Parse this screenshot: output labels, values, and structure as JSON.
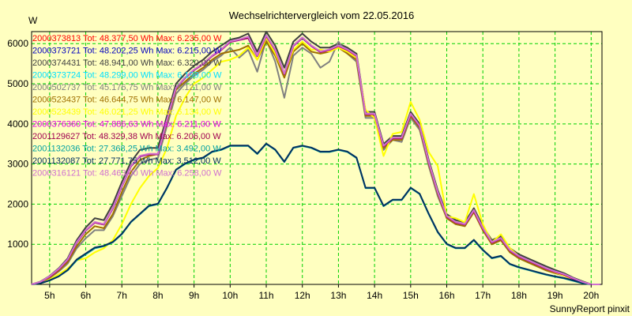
{
  "chart_data": {
    "type": "line",
    "title": "Wechselrichtervergleich vom 22.05.2016",
    "ylabel": "W",
    "credit": "SunnyReport pinxit",
    "xlim": [
      4.5,
      20.3
    ],
    "ylim": [
      0,
      6300
    ],
    "grid": true,
    "legend_position": "top-left",
    "x_ticks": [
      5,
      6,
      7,
      8,
      9,
      10,
      11,
      12,
      13,
      14,
      15,
      16,
      17,
      18,
      19,
      20
    ],
    "x_tick_labels": [
      "5h",
      "6h",
      "7h",
      "8h",
      "9h",
      "10h",
      "11h",
      "12h",
      "13h",
      "14h",
      "15h",
      "16h",
      "17h",
      "18h",
      "19h",
      "20h"
    ],
    "y_ticks": [
      0,
      1000,
      2000,
      3000,
      4000,
      5000,
      6000
    ],
    "y_tick_labels": [
      "",
      "1000",
      "2000",
      "3000",
      "4000",
      "5000",
      "6000"
    ],
    "x": [
      4.5,
      4.75,
      5.0,
      5.25,
      5.5,
      5.75,
      6.0,
      6.25,
      6.5,
      6.75,
      7.0,
      7.25,
      7.5,
      7.75,
      8.0,
      8.25,
      8.5,
      8.75,
      9.0,
      9.25,
      9.5,
      9.75,
      10.0,
      10.25,
      10.5,
      10.75,
      11.0,
      11.25,
      11.5,
      11.75,
      12.0,
      12.25,
      12.5,
      12.75,
      13.0,
      13.25,
      13.5,
      13.75,
      14.0,
      14.25,
      14.5,
      14.75,
      15.0,
      15.25,
      15.5,
      15.75,
      16.0,
      16.25,
      16.5,
      16.75,
      17.0,
      17.25,
      17.5,
      17.75,
      18.0,
      18.25,
      18.5,
      18.75,
      19.0,
      19.25,
      19.5,
      19.75,
      20.0,
      20.25
    ],
    "series": [
      {
        "name": "2000373813 Tot: 48.377,50 Wh Max: 6.235,00 W",
        "color": "#ff0000",
        "values": [
          0,
          60,
          200,
          380,
          620,
          1050,
          1350,
          1550,
          1500,
          1900,
          2450,
          2950,
          3200,
          3250,
          3250,
          4100,
          4900,
          5150,
          5350,
          5500,
          5700,
          5850,
          6050,
          6100,
          6150,
          5700,
          6200,
          5850,
          5250,
          5950,
          6150,
          5950,
          5800,
          5850,
          5950,
          5850,
          5700,
          4250,
          4250,
          3450,
          3650,
          3650,
          4250,
          3950,
          3050,
          2300,
          1700,
          1550,
          1500,
          1850,
          1400,
          1050,
          1150,
          850,
          700,
          600,
          500,
          400,
          320,
          250,
          150,
          60,
          0,
          0
        ]
      },
      {
        "name": "2000373721 Tot: 48.202,25 Wh Max: 6.215,00 W",
        "color": "#0000c0",
        "values": [
          0,
          60,
          190,
          370,
          610,
          1040,
          1340,
          1540,
          1490,
          1890,
          2440,
          2940,
          3190,
          3240,
          3240,
          4090,
          4890,
          5140,
          5340,
          5490,
          5690,
          5840,
          6040,
          6090,
          6140,
          5690,
          6190,
          5840,
          5240,
          5940,
          6140,
          5940,
          5790,
          5840,
          5940,
          5840,
          5690,
          4240,
          4240,
          3440,
          3640,
          3640,
          4240,
          3940,
          3040,
          2290,
          1690,
          1540,
          1490,
          1840,
          1390,
          1040,
          1140,
          840,
          690,
          590,
          490,
          390,
          310,
          240,
          140,
          50,
          0,
          0
        ]
      },
      {
        "name": "2000374431 Tot: 48.941,00 Wh Max: 6.320,00 W",
        "color": "#404040",
        "values": [
          0,
          70,
          210,
          400,
          650,
          1100,
          1420,
          1650,
          1600,
          2000,
          2550,
          3050,
          3350,
          3400,
          3400,
          4200,
          5000,
          5250,
          5450,
          5600,
          5800,
          5950,
          6100,
          6150,
          6250,
          5800,
          6300,
          5950,
          5400,
          6050,
          6250,
          6050,
          5900,
          5900,
          6000,
          5900,
          5750,
          4300,
          4300,
          3500,
          3700,
          3700,
          4300,
          4000,
          3100,
          2350,
          1750,
          1600,
          1550,
          1900,
          1450,
          1100,
          1200,
          900,
          750,
          650,
          550,
          450,
          360,
          280,
          170,
          80,
          0,
          0
        ]
      },
      {
        "name": "2000373724 Tot: 48.299,00 Wh Max: 6.199,00 W",
        "color": "#00e0ff",
        "values": [
          0,
          60,
          195,
          375,
          615,
          1045,
          1345,
          1545,
          1495,
          1895,
          2445,
          2945,
          3195,
          3245,
          3245,
          4095,
          4895,
          5145,
          5345,
          5495,
          5695,
          5845,
          6045,
          6095,
          6145,
          5695,
          6195,
          5845,
          5245,
          5945,
          6145,
          5945,
          5795,
          5845,
          5945,
          5845,
          5695,
          4245,
          4245,
          3445,
          3645,
          3645,
          4245,
          3945,
          3045,
          2295,
          1695,
          1545,
          1495,
          1845,
          1395,
          1045,
          1145,
          845,
          695,
          595,
          495,
          395,
          315,
          245,
          145,
          55,
          0,
          0
        ]
      },
      {
        "name": "2000502737 Tot: 45.176,75 Wh Max: 6.121,00 W",
        "color": "#808080",
        "values": [
          0,
          50,
          160,
          320,
          520,
          900,
          1150,
          1350,
          1350,
          1700,
          2200,
          2700,
          3000,
          3100,
          3150,
          3950,
          4750,
          5000,
          5200,
          5350,
          5550,
          5700,
          5900,
          5650,
          5850,
          5300,
          6100,
          5550,
          4650,
          5700,
          5900,
          5750,
          5400,
          5550,
          6050,
          5750,
          5550,
          4150,
          4150,
          3350,
          3600,
          3550,
          4150,
          3850,
          2950,
          2200,
          1650,
          1500,
          1450,
          1800,
          1350,
          1000,
          1100,
          800,
          650,
          550,
          450,
          350,
          280,
          220,
          130,
          50,
          0,
          0
        ]
      },
      {
        "name": "2000523437 Tot: 46.644,75 Wh Max: 6.147,00 W",
        "color": "#a07000",
        "values": [
          0,
          50,
          170,
          340,
          560,
          950,
          1250,
          1450,
          1400,
          1750,
          2300,
          2800,
          3100,
          3200,
          3250,
          4050,
          4850,
          5050,
          5250,
          5400,
          5600,
          5750,
          5800,
          5850,
          5950,
          5600,
          6050,
          5700,
          5150,
          5800,
          6000,
          5800,
          5750,
          5800,
          5900,
          5750,
          5600,
          4200,
          4200,
          3400,
          3600,
          3600,
          4200,
          3900,
          3000,
          2250,
          1650,
          1500,
          1450,
          1800,
          1350,
          1000,
          1100,
          800,
          650,
          550,
          450,
          350,
          280,
          220,
          130,
          50,
          0,
          0
        ]
      },
      {
        "name": "2000523439 Tot: 46.021,25 Wh Max: 6.134,00 W",
        "color": "#ffff00",
        "values": [
          0,
          40,
          120,
          250,
          400,
          600,
          650,
          800,
          900,
          1100,
          1500,
          2000,
          2400,
          2700,
          2900,
          3400,
          4200,
          4650,
          5000,
          5150,
          5350,
          5550,
          5600,
          5700,
          5900,
          5600,
          6150,
          5750,
          5250,
          5850,
          6050,
          5850,
          5850,
          5800,
          5900,
          5800,
          5650,
          4350,
          4150,
          3200,
          3750,
          3800,
          4550,
          4100,
          3300,
          2950,
          1700,
          1650,
          1550,
          2250,
          1500,
          1050,
          1250,
          900,
          700,
          600,
          500,
          400,
          300,
          220,
          120,
          50,
          0,
          0
        ]
      },
      {
        "name": "2000376360 Tot: 47.886,63 Wh Max: 6.211,00 W",
        "color": "#e000e0",
        "values": [
          0,
          60,
          190,
          370,
          610,
          1040,
          1340,
          1540,
          1490,
          1890,
          2440,
          2940,
          3190,
          3240,
          3240,
          4090,
          4890,
          5140,
          5340,
          5490,
          5690,
          5840,
          6040,
          6090,
          6140,
          5690,
          6190,
          5840,
          5240,
          5940,
          6140,
          5940,
          5790,
          5840,
          5940,
          5840,
          5690,
          4240,
          4240,
          3440,
          3640,
          3640,
          4240,
          3940,
          3040,
          2290,
          1690,
          1540,
          1490,
          1840,
          1390,
          1040,
          1140,
          840,
          690,
          590,
          490,
          390,
          310,
          240,
          140,
          50,
          0,
          0
        ]
      },
      {
        "name": "2001129627 Tot: 48.329,38 Wh Max: 6.206,00 W",
        "color": "#a00050",
        "values": [
          0,
          60,
          195,
          375,
          615,
          1045,
          1345,
          1545,
          1495,
          1895,
          2445,
          2945,
          3195,
          3245,
          3245,
          4095,
          4895,
          5145,
          5345,
          5495,
          5695,
          5845,
          6045,
          6095,
          6145,
          5695,
          6195,
          5845,
          5245,
          5945,
          6145,
          5945,
          5795,
          5845,
          5945,
          5845,
          5695,
          4245,
          4245,
          3445,
          3645,
          3645,
          4245,
          3945,
          3045,
          2295,
          1695,
          1545,
          1495,
          1845,
          1395,
          1045,
          1145,
          845,
          695,
          595,
          495,
          395,
          315,
          245,
          145,
          55,
          0,
          0
        ]
      },
      {
        "name": "2001132036 Tot: 27.368,25 Wh Max: 3.492,00 W",
        "color": "#00a0a0",
        "values": [
          0,
          30,
          100,
          200,
          350,
          600,
          750,
          900,
          950,
          1050,
          1250,
          1550,
          1750,
          1950,
          2000,
          2400,
          2850,
          3000,
          3100,
          3150,
          3300,
          3350,
          3450,
          3450,
          3450,
          3250,
          3500,
          3350,
          3050,
          3400,
          3450,
          3400,
          3300,
          3300,
          3350,
          3300,
          3150,
          2400,
          2400,
          1950,
          2100,
          2100,
          2400,
          2250,
          1750,
          1300,
          1000,
          900,
          900,
          1100,
          850,
          650,
          700,
          500,
          420,
          360,
          300,
          240,
          190,
          150,
          90,
          30,
          0,
          0
        ]
      },
      {
        "name": "2001132087 Tot: 27.771,75 Wh Max: 3.512,00 W",
        "color": "#003060",
        "values": [
          0,
          30,
          100,
          200,
          360,
          620,
          770,
          920,
          960,
          1060,
          1260,
          1560,
          1760,
          1960,
          2010,
          2410,
          2860,
          3010,
          3110,
          3160,
          3310,
          3360,
          3460,
          3460,
          3460,
          3260,
          3510,
          3360,
          3060,
          3410,
          3460,
          3410,
          3310,
          3310,
          3360,
          3310,
          3160,
          2410,
          2410,
          1960,
          2110,
          2110,
          2410,
          2260,
          1760,
          1310,
          1010,
          910,
          910,
          1110,
          860,
          660,
          710,
          510,
          430,
          370,
          310,
          250,
          200,
          160,
          100,
          40,
          0,
          0
        ]
      },
      {
        "name": "2000316121 Tot: 48.463,00 Wh Max: 6.258,00 W",
        "color": "#d070d0",
        "values": [
          0,
          65,
          205,
          385,
          625,
          1055,
          1355,
          1555,
          1505,
          1905,
          2455,
          2955,
          3205,
          3255,
          3255,
          4105,
          4905,
          5155,
          5355,
          5505,
          5705,
          5855,
          6055,
          6105,
          6175,
          5705,
          6210,
          5855,
          5255,
          5955,
          6155,
          5955,
          5805,
          5855,
          5955,
          5855,
          5705,
          4255,
          4255,
          3455,
          3655,
          3655,
          4255,
          3955,
          3055,
          2305,
          1705,
          1555,
          1505,
          1855,
          1405,
          1055,
          1155,
          855,
          705,
          605,
          505,
          405,
          325,
          255,
          155,
          65,
          0,
          0
        ]
      }
    ]
  }
}
